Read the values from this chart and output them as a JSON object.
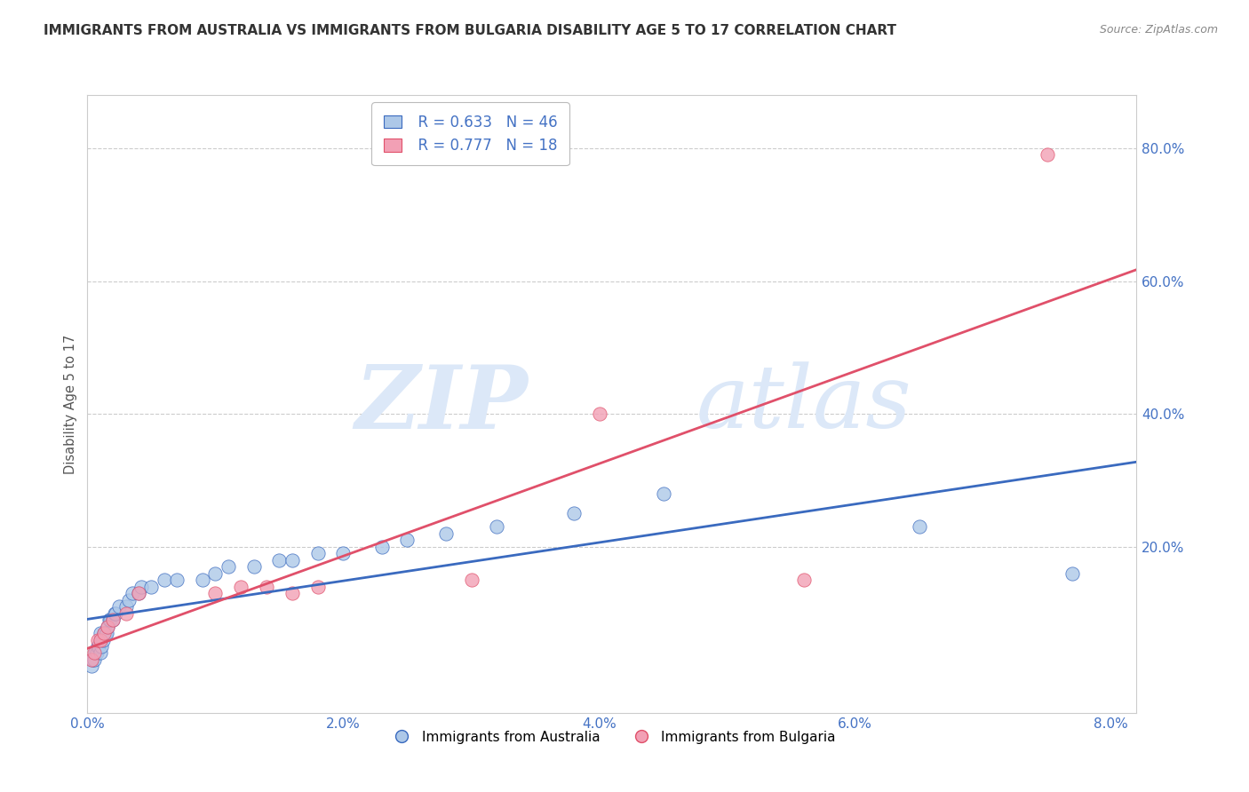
{
  "title": "IMMIGRANTS FROM AUSTRALIA VS IMMIGRANTS FROM BULGARIA DISABILITY AGE 5 TO 17 CORRELATION CHART",
  "source": "Source: ZipAtlas.com",
  "ylabel": "Disability Age 5 to 17",
  "xlim": [
    0.0,
    0.082
  ],
  "ylim": [
    -0.05,
    0.88
  ],
  "xticks": [
    0.0,
    0.01,
    0.02,
    0.03,
    0.04,
    0.05,
    0.06,
    0.07,
    0.08
  ],
  "xtick_labels": [
    "0.0%",
    "",
    "2.0%",
    "",
    "4.0%",
    "",
    "6.0%",
    "",
    "8.0%"
  ],
  "yticks": [
    0.2,
    0.4,
    0.6,
    0.8
  ],
  "ytick_labels": [
    "20.0%",
    "40.0%",
    "60.0%",
    "80.0%"
  ],
  "tick_color": "#4472c4",
  "legend_r1": "R = 0.633",
  "legend_n1": "N = 46",
  "legend_r2": "R = 0.777",
  "legend_n2": "N = 18",
  "color_australia": "#adc8e8",
  "color_bulgaria": "#f2a0b5",
  "trendline_color_australia": "#3a6abf",
  "trendline_color_bulgaria": "#e0506a",
  "watermark_color": "#dce8f8",
  "australia_x": [
    0.0003,
    0.0004,
    0.0005,
    0.0006,
    0.0007,
    0.0008,
    0.0009,
    0.001,
    0.001,
    0.001,
    0.0011,
    0.0012,
    0.0013,
    0.0014,
    0.0015,
    0.0016,
    0.0017,
    0.0018,
    0.002,
    0.0021,
    0.0022,
    0.0025,
    0.003,
    0.0032,
    0.0035,
    0.004,
    0.0042,
    0.005,
    0.006,
    0.007,
    0.009,
    0.01,
    0.011,
    0.013,
    0.015,
    0.016,
    0.018,
    0.02,
    0.023,
    0.025,
    0.028,
    0.032,
    0.038,
    0.045,
    0.065,
    0.077
  ],
  "australia_y": [
    0.02,
    0.03,
    0.03,
    0.04,
    0.04,
    0.05,
    0.05,
    0.04,
    0.06,
    0.07,
    0.05,
    0.06,
    0.07,
    0.07,
    0.07,
    0.08,
    0.09,
    0.09,
    0.09,
    0.1,
    0.1,
    0.11,
    0.11,
    0.12,
    0.13,
    0.13,
    0.14,
    0.14,
    0.15,
    0.15,
    0.15,
    0.16,
    0.17,
    0.17,
    0.18,
    0.18,
    0.19,
    0.19,
    0.2,
    0.21,
    0.22,
    0.23,
    0.25,
    0.28,
    0.23,
    0.16
  ],
  "bulgaria_x": [
    0.0003,
    0.0005,
    0.0008,
    0.001,
    0.0013,
    0.0016,
    0.002,
    0.003,
    0.004,
    0.01,
    0.012,
    0.014,
    0.016,
    0.018,
    0.03,
    0.04,
    0.056,
    0.075
  ],
  "bulgaria_y": [
    0.03,
    0.04,
    0.06,
    0.06,
    0.07,
    0.08,
    0.09,
    0.1,
    0.13,
    0.13,
    0.14,
    0.14,
    0.13,
    0.14,
    0.15,
    0.4,
    0.15,
    0.79
  ],
  "legend_label_australia": "Immigrants from Australia",
  "legend_label_bulgaria": "Immigrants from Bulgaria",
  "title_fontsize": 11,
  "axis_label_fontsize": 10.5,
  "tick_fontsize": 11
}
